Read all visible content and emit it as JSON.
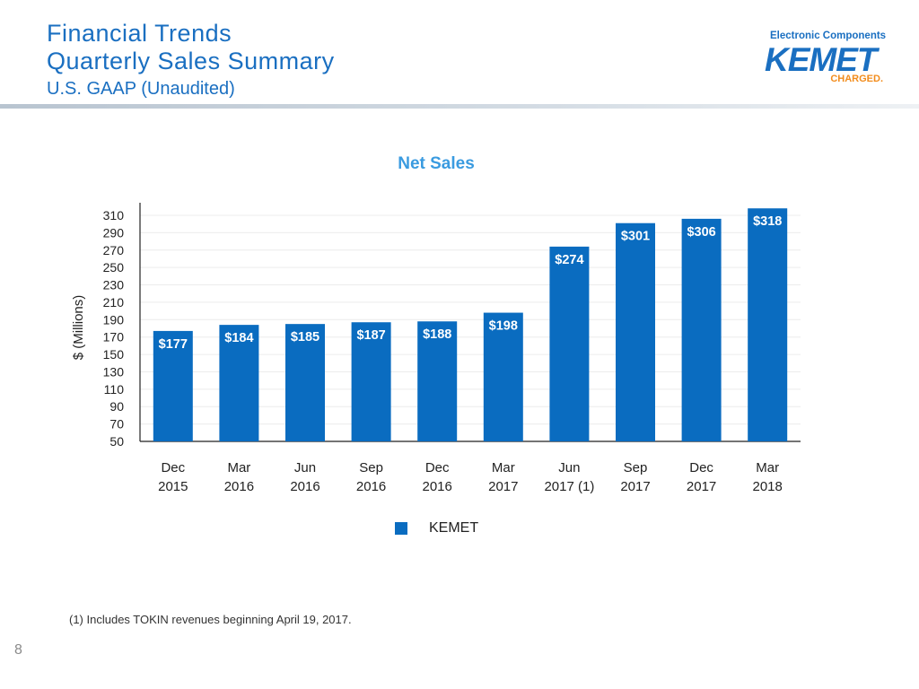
{
  "header": {
    "title_line1": "Financial Trends",
    "title_line2": "Quarterly Sales Summary",
    "subtitle": "U.S. GAAP (Unaudited)"
  },
  "logo": {
    "top_text": "Electronic Components",
    "brand": "KEMET",
    "tagline": "CHARGED."
  },
  "chart_data": {
    "type": "bar",
    "title": "Net Sales",
    "ylabel": "$ (Millions)",
    "xlabel": "",
    "ylim": [
      50,
      310
    ],
    "yticks": [
      310,
      290,
      270,
      250,
      230,
      210,
      190,
      170,
      150,
      130,
      110,
      90,
      70,
      50
    ],
    "categories": [
      [
        "Dec",
        "2015"
      ],
      [
        "Mar",
        "2016"
      ],
      [
        "Jun",
        "2016"
      ],
      [
        "Sep",
        "2016"
      ],
      [
        "Dec",
        "2016"
      ],
      [
        "Mar",
        "2017"
      ],
      [
        "Jun",
        "2017 (1)"
      ],
      [
        "Sep",
        "2017"
      ],
      [
        "Dec",
        "2017"
      ],
      [
        "Mar",
        "2018"
      ]
    ],
    "series": [
      {
        "name": "KEMET",
        "color": "#0a6cc0",
        "values": [
          177,
          184,
          185,
          187,
          188,
          198,
          274,
          301,
          306,
          318
        ],
        "labels": [
          "$177",
          "$184",
          "$185",
          "$187",
          "$188",
          "$198",
          "$274",
          "$301",
          "$306",
          "$318"
        ]
      }
    ],
    "grid": true,
    "legend": "bottom-center"
  },
  "footnote": "(1)  Includes TOKIN revenues beginning April 19, 2017.",
  "page_number": "8"
}
